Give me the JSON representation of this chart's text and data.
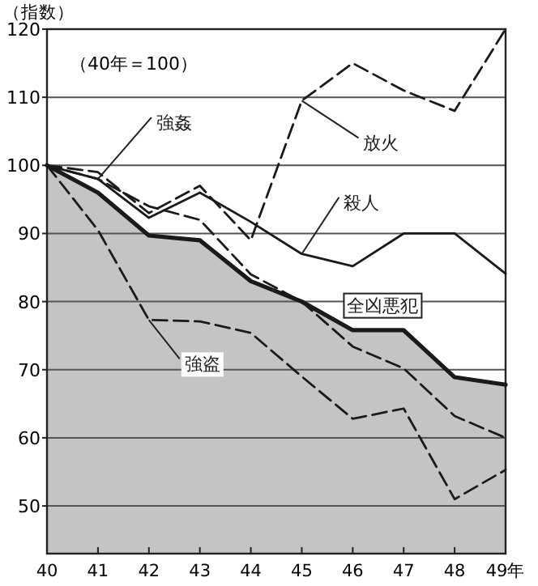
{
  "chart_data": {
    "type": "line",
    "ylabel": "（指数）",
    "annotations": [
      "（40年＝100）"
    ],
    "categories": [
      "40",
      "41",
      "42",
      "43",
      "44",
      "45",
      "46",
      "47",
      "48",
      "49年"
    ],
    "ylim": [
      43,
      120
    ],
    "yticks": [
      50,
      60,
      70,
      80,
      90,
      100,
      110,
      120
    ],
    "grid": "y",
    "legend": false,
    "marker": "none",
    "series": [
      {
        "name": "全凶悪犯",
        "type": "area",
        "color": "#1a1a1a",
        "line_style": "solid",
        "values": [
          100,
          96,
          89.7,
          89,
          83,
          80,
          75.8,
          75.8,
          68.9,
          67.8
        ]
      },
      {
        "name": "放火",
        "type": "line",
        "color": "#1a1a1a",
        "line_style": "dashed",
        "values": [
          100,
          99,
          93,
          97,
          89,
          109.5,
          115,
          111,
          108,
          120
        ]
      },
      {
        "name": "強姦",
        "type": "line",
        "color": "#1a1a1a",
        "line_style": "dashed",
        "values": [
          100,
          98,
          94,
          92,
          84,
          80,
          73.4,
          70.2,
          63.2,
          60
        ]
      },
      {
        "name": "殺人",
        "type": "line",
        "color": "#1a1a1a",
        "line_style": "solid",
        "values": [
          100,
          98,
          92.3,
          96,
          91.7,
          87,
          85.2,
          90,
          90,
          84.1
        ]
      },
      {
        "name": "強盗",
        "type": "line",
        "color": "#1a1a1a",
        "line_style": "dashed",
        "values": [
          100,
          90.5,
          77.3,
          77.1,
          75.4,
          69,
          62.8,
          64.3,
          51,
          55.3
        ]
      }
    ]
  }
}
